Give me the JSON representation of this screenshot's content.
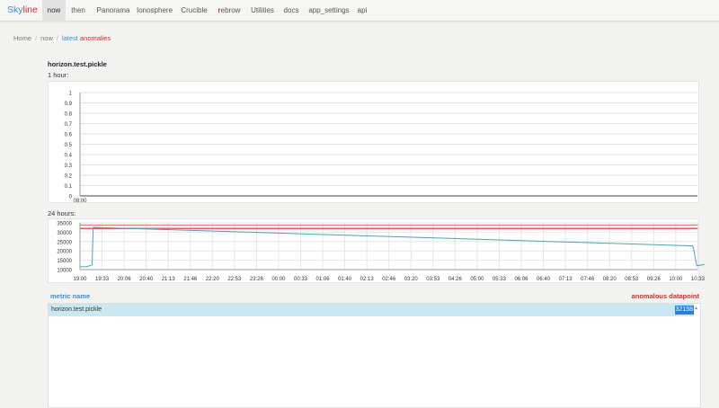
{
  "nav": {
    "brand_part1": "Sky",
    "brand_part2": "line",
    "items": [
      {
        "label": "now",
        "active": true
      },
      {
        "label": "then"
      },
      {
        "label": "Panorama"
      },
      {
        "label": "Ionosphere"
      },
      {
        "label": "Crucible"
      },
      {
        "label_r": "r",
        "label_rest": "ebrow"
      },
      {
        "label": "Utilities"
      },
      {
        "label": "docs"
      },
      {
        "label": "app_settings"
      },
      {
        "label": "api"
      }
    ]
  },
  "breadcrumb": {
    "home": "Home",
    "now": "now",
    "latest": "latest",
    "anomalies": "anomalies"
  },
  "metric": {
    "name": "horizon.test.pickle",
    "label_1h": "1 hour:",
    "label_24h": "24 hours:"
  },
  "chart_data": [
    {
      "type": "line",
      "title": "",
      "y_ticks": [
        "1",
        "0.9",
        "0.8",
        "0.7",
        "0.6",
        "0.5",
        "0.4",
        "0.3",
        "0.2",
        "0.1",
        "0"
      ],
      "x_ticks": [
        "08:00"
      ],
      "ylim": [
        0,
        1
      ],
      "series": [
        {
          "values": [
            0,
            0
          ]
        }
      ],
      "grid": true
    },
    {
      "type": "line",
      "title": "",
      "y_ticks": [
        "35000",
        "30000",
        "25000",
        "20000",
        "15000",
        "10000"
      ],
      "ylim": [
        10000,
        35000
      ],
      "x_ticks": [
        "19:00",
        "19:33",
        "20:06",
        "20:40",
        "21:13",
        "21:46",
        "22:20",
        "22:53",
        "23:26",
        "00:00",
        "00:33",
        "01:06",
        "01:40",
        "02:13",
        "02:46",
        "03:20",
        "03:53",
        "04:26",
        "05:00",
        "05:33",
        "06:06",
        "06:40",
        "07:13",
        "07:46",
        "08:20",
        "08:53",
        "09:26",
        "10:00",
        "10:33"
      ],
      "series": [
        {
          "color": "#4aa3b3",
          "points": [
            [
              0,
              11500
            ],
            [
              0.3,
              11600
            ],
            [
              0.55,
              12500
            ],
            [
              0.6,
              32600
            ],
            [
              27.75,
              22700
            ],
            [
              27.8,
              21800
            ],
            [
              27.95,
              12000
            ],
            [
              28.3,
              12800
            ]
          ]
        }
      ],
      "threshold_lines": [
        {
          "color": "#e05555",
          "value": 33900
        },
        {
          "color": "#e05555",
          "value": 32150
        },
        {
          "color": "#e05555",
          "value": 31800
        }
      ],
      "grid": true
    }
  ],
  "table": {
    "col_name": "metric name",
    "col_point": "anomalous datapoint",
    "rows": [
      {
        "name": "horizon.test.pickle",
        "value": "32158"
      }
    ]
  }
}
